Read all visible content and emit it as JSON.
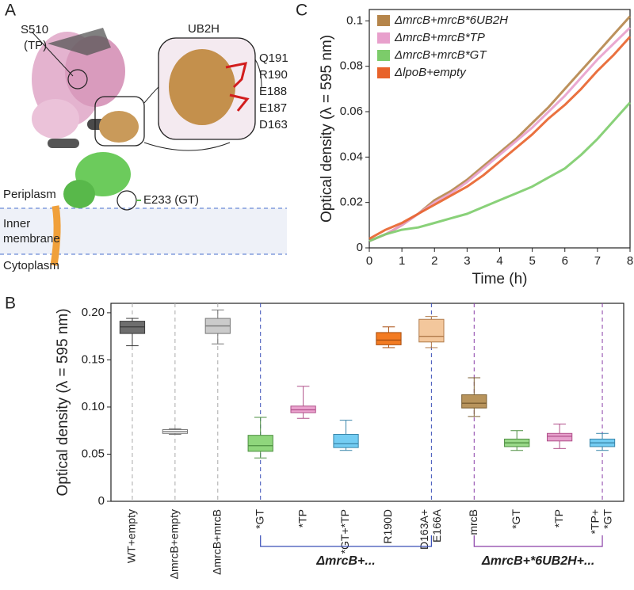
{
  "panel_labels": [
    "A",
    "B",
    "C"
  ],
  "structure": {
    "tp_site": [
      "S510",
      "(TP)"
    ],
    "domain": "UB2H",
    "residues": [
      {
        "label": "Q191",
        "color": "#111111"
      },
      {
        "label": "R190",
        "color": "#f07d22"
      },
      {
        "label": "E188",
        "color": "#f2c39a"
      },
      {
        "label": "E187",
        "color": "#f2c39a"
      },
      {
        "label": "D163",
        "color": "#111111"
      }
    ],
    "gt_site": "E233 (GT)",
    "regions": [
      [
        "Periplasm"
      ],
      [
        "Inner",
        "membrane"
      ],
      [
        "Cytoplasm"
      ]
    ]
  },
  "chart_data": [
    {
      "type": "line",
      "xlabel": "Time (h)",
      "ylabel": "Optical density (λ = 595 nm)",
      "x": [
        0,
        0.5,
        1,
        1.5,
        2,
        2.5,
        3,
        3.5,
        4,
        4.5,
        5,
        5.5,
        6,
        6.5,
        7,
        7.5,
        8
      ],
      "xlim": [
        0,
        8
      ],
      "xticks": [
        0,
        1,
        2,
        3,
        4,
        5,
        6,
        7,
        8
      ],
      "ylim": [
        0,
        0.105
      ],
      "yticks": [
        0,
        0.02,
        0.04,
        0.06,
        0.08,
        0.1
      ],
      "legend": "upper left",
      "series": [
        {
          "name": "ΔmrcB+mrcB*6UB2H",
          "color": "#b5854a",
          "values": [
            0.003,
            0.006,
            0.01,
            0.015,
            0.021,
            0.025,
            0.03,
            0.036,
            0.042,
            0.048,
            0.055,
            0.062,
            0.07,
            0.078,
            0.086,
            0.094,
            0.102
          ]
        },
        {
          "name": "ΔmrcB+mrcB*TP",
          "color": "#e8a0cc",
          "values": [
            0.003,
            0.006,
            0.01,
            0.015,
            0.02,
            0.024,
            0.029,
            0.035,
            0.041,
            0.047,
            0.053,
            0.06,
            0.067,
            0.075,
            0.083,
            0.09,
            0.097
          ]
        },
        {
          "name": "ΔmrcB+mrcB*GT",
          "color": "#7ccc6a",
          "values": [
            0.003,
            0.006,
            0.008,
            0.009,
            0.011,
            0.013,
            0.015,
            0.018,
            0.021,
            0.024,
            0.027,
            0.031,
            0.035,
            0.041,
            0.048,
            0.056,
            0.064
          ]
        },
        {
          "name": "ΔlpoB+empty",
          "color": "#e8622a",
          "values": [
            0.004,
            0.008,
            0.011,
            0.015,
            0.019,
            0.023,
            0.027,
            0.032,
            0.038,
            0.044,
            0.05,
            0.057,
            0.063,
            0.07,
            0.078,
            0.085,
            0.093
          ]
        }
      ]
    },
    {
      "type": "box",
      "ylabel": "Optical density (λ = 595 nm)",
      "categories": [
        [
          "WT+empty"
        ],
        [
          "ΔmrcB+empty"
        ],
        [
          "ΔmrcB+mrcB"
        ],
        [
          "*GT"
        ],
        [
          "*TP"
        ],
        [
          "*GT+*TP"
        ],
        [
          "R190D"
        ],
        [
          "D163A+",
          "E166A"
        ],
        [
          "mrcB"
        ],
        [
          "*GT"
        ],
        [
          "*TP"
        ],
        [
          "*TP+",
          "*GT"
        ]
      ],
      "ylim": [
        0,
        0.21
      ],
      "yticks": [
        0,
        0.05,
        {
          "value": 0.1,
          "label": "0.10"
        },
        0.15,
        {
          "value": 0.2,
          "label": "0.20"
        }
      ],
      "group_labels": [
        {
          "label": "ΔmrcB+...",
          "color": "#3a4fb8"
        },
        {
          "label": "ΔmrcB+*6UB2H+...",
          "color": "#8a3fa8"
        }
      ],
      "boxes": [
        {
          "whislo": 0.165,
          "q1": 0.178,
          "med": 0.185,
          "q3": 0.191,
          "whishi": 0.194,
          "color": "#6e6e6e",
          "edge": "#3a3a3a"
        },
        {
          "whislo": 0.071,
          "q1": 0.072,
          "med": 0.074,
          "q3": 0.076,
          "whishi": 0.077,
          "color": "#ffffff",
          "edge": "#777777"
        },
        {
          "whislo": 0.167,
          "q1": 0.178,
          "med": 0.186,
          "q3": 0.194,
          "whishi": 0.203,
          "color": "#cbcbcb",
          "edge": "#777777"
        },
        {
          "whislo": 0.046,
          "q1": 0.053,
          "med": 0.059,
          "q3": 0.07,
          "whishi": 0.089,
          "color": "#8fd67c",
          "edge": "#4d8f40"
        },
        {
          "whislo": 0.088,
          "q1": 0.094,
          "med": 0.097,
          "q3": 0.101,
          "whishi": 0.122,
          "color": "#eba3cf",
          "edge": "#b0508a"
        },
        {
          "whislo": 0.054,
          "q1": 0.057,
          "med": 0.061,
          "q3": 0.071,
          "whishi": 0.086,
          "color": "#74cdf3",
          "edge": "#3a86aa"
        },
        {
          "whislo": 0.163,
          "q1": 0.166,
          "med": 0.171,
          "q3": 0.179,
          "whishi": 0.185,
          "color": "#f37b22",
          "edge": "#a84e10"
        },
        {
          "whislo": 0.163,
          "q1": 0.169,
          "med": 0.175,
          "q3": 0.193,
          "whishi": 0.196,
          "color": "#f3c79c",
          "edge": "#b07a4a"
        },
        {
          "whislo": 0.09,
          "q1": 0.099,
          "med": 0.104,
          "q3": 0.113,
          "whishi": 0.131,
          "color": "#b8945c",
          "edge": "#7a5e30"
        },
        {
          "whislo": 0.054,
          "q1": 0.058,
          "med": 0.062,
          "q3": 0.066,
          "whishi": 0.075,
          "color": "#9ad98a",
          "edge": "#4d8f40"
        },
        {
          "whislo": 0.056,
          "q1": 0.064,
          "med": 0.069,
          "q3": 0.072,
          "whishi": 0.082,
          "color": "#e6a0cc",
          "edge": "#b0508a"
        },
        {
          "whislo": 0.054,
          "q1": 0.058,
          "med": 0.062,
          "q3": 0.066,
          "whishi": 0.072,
          "color": "#74cdf3",
          "edge": "#3a86aa"
        }
      ]
    }
  ]
}
